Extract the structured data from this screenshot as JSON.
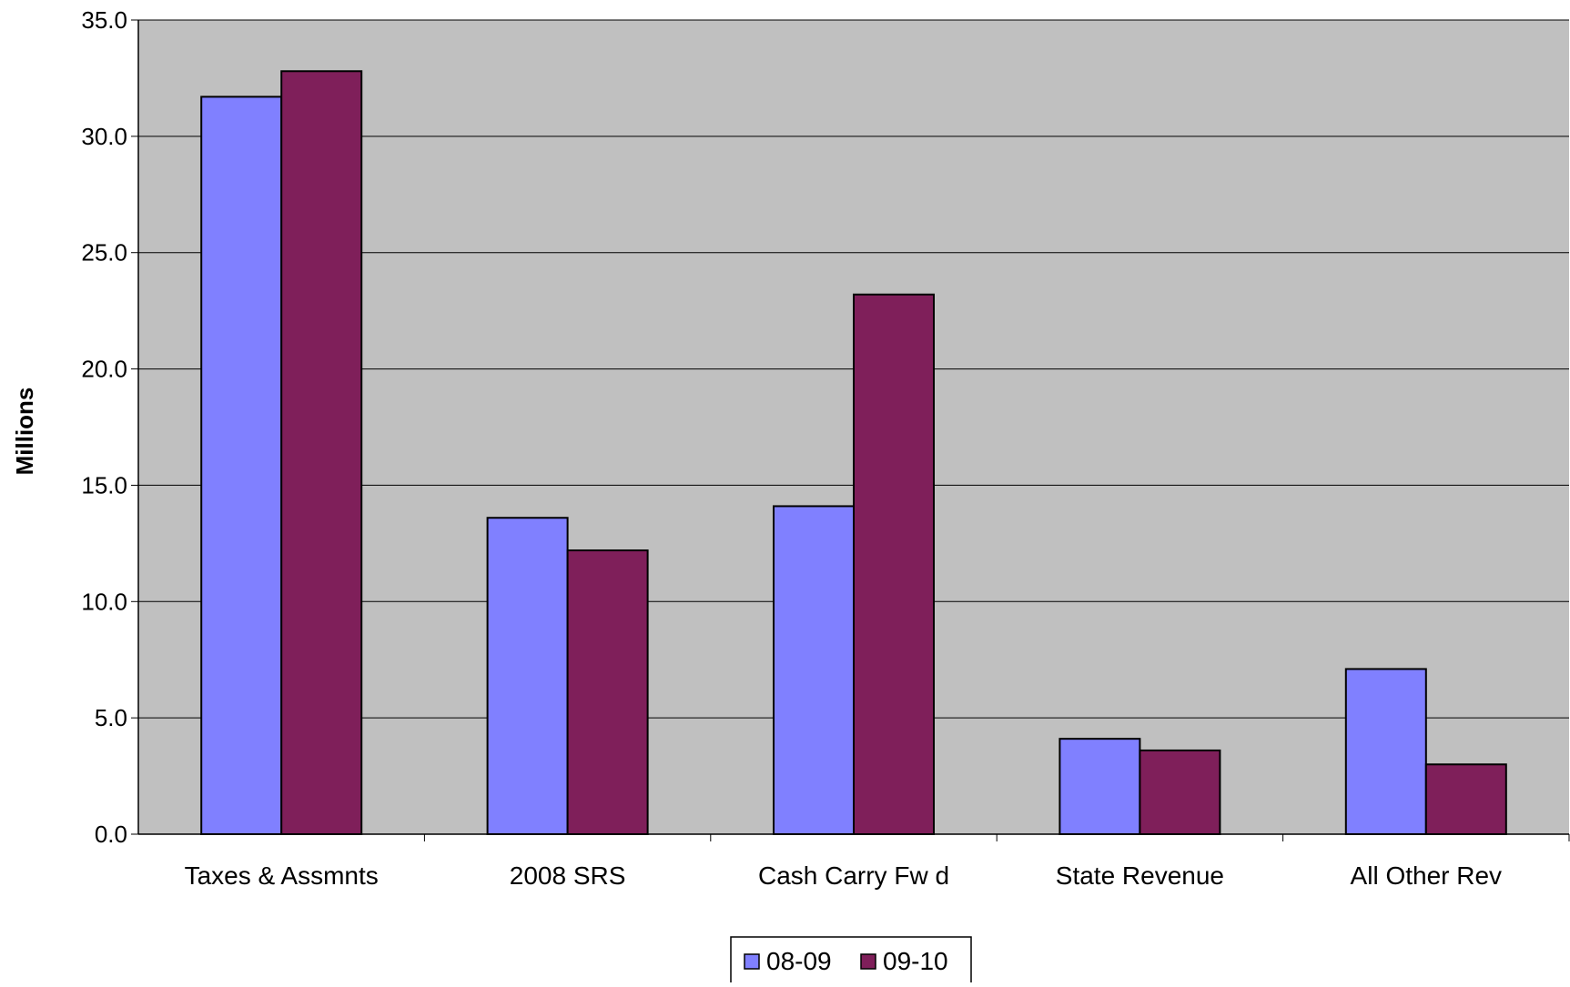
{
  "chart_data": {
    "type": "bar",
    "title": "",
    "xlabel": "",
    "ylabel": "Millions",
    "ylim": [
      0,
      35
    ],
    "yticks": [
      "0.0",
      "5.0",
      "10.0",
      "15.0",
      "20.0",
      "25.0",
      "30.0",
      "35.0"
    ],
    "grid": true,
    "legend_position": "bottom",
    "categories": [
      "Taxes & Assmnts",
      "2008 SRS",
      "Cash Carry Fw d",
      "State Revenue",
      "All Other Rev"
    ],
    "series": [
      {
        "name": "08-09",
        "color": "#8080FF",
        "values": [
          31.7,
          13.6,
          14.1,
          4.1,
          7.1
        ]
      },
      {
        "name": "09-10",
        "color": "#7F1F5A",
        "values": [
          32.8,
          12.2,
          23.2,
          3.6,
          3.0
        ]
      }
    ],
    "plot_background": "#C0C0C0"
  }
}
